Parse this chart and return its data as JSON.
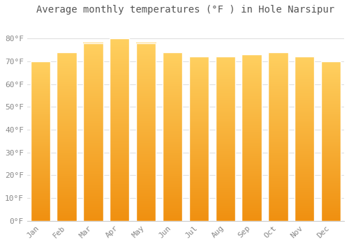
{
  "title": "Average monthly temperatures (°F ) in Hole Narsipur",
  "months": [
    "Jan",
    "Feb",
    "Mar",
    "Apr",
    "May",
    "Jun",
    "Jul",
    "Aug",
    "Sep",
    "Oct",
    "Nov",
    "Dec"
  ],
  "values": [
    70,
    74,
    78,
    80,
    78,
    74,
    72,
    72,
    73,
    74,
    72,
    70
  ],
  "bar_color_main": "#FFA500",
  "bar_color_light": "#FFD060",
  "background_color": "#FFFFFF",
  "grid_color": "#E0E0E0",
  "text_color": "#888888",
  "title_color": "#555555",
  "ylim": [
    0,
    88
  ],
  "yticks": [
    0,
    10,
    20,
    30,
    40,
    50,
    60,
    70,
    80
  ],
  "ytick_labels": [
    "0°F",
    "10°F",
    "20°F",
    "30°F",
    "40°F",
    "50°F",
    "60°F",
    "70°F",
    "80°F"
  ],
  "title_fontsize": 10,
  "tick_fontsize": 8,
  "font_family": "monospace"
}
